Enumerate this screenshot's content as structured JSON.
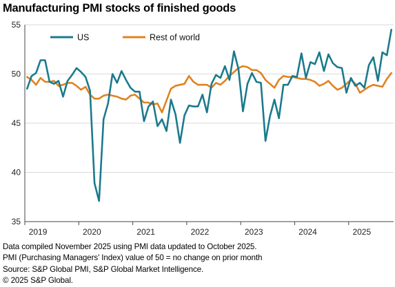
{
  "header": {
    "title": "Manufacturing PMI stocks of finished goods"
  },
  "footnotes": [
    "Data compiled November 2025 using PMI data updated to October 2025.",
    "PMI (Purchasing Managers' Index) value of 50 = no change on prior month",
    "Source: S&P Global PMI, S&P Global Market Intelligence.",
    "© 2025 S&P Global."
  ],
  "colors": {
    "US": "#1a7a8c",
    "Rest of world": "#e0821f",
    "gridline": "#d9d9d9",
    "axis": "#444444"
  },
  "chart_data": {
    "type": "line",
    "title": "Manufacturing PMI stocks of finished goods",
    "xlabel": "",
    "ylabel": "",
    "ylim": [
      35,
      55
    ],
    "yticks": [
      35,
      40,
      45,
      50,
      55
    ],
    "xticks": [
      "2019",
      "2020",
      "2021",
      "2022",
      "2023",
      "2024",
      "2025"
    ],
    "xrange": [
      "2019-01",
      "2025-10"
    ],
    "grid": "horizontal",
    "legend_position": "top-left",
    "x": [
      "2019-01",
      "2019-02",
      "2019-03",
      "2019-04",
      "2019-05",
      "2019-06",
      "2019-07",
      "2019-08",
      "2019-09",
      "2019-10",
      "2019-11",
      "2019-12",
      "2020-01",
      "2020-02",
      "2020-03",
      "2020-04",
      "2020-05",
      "2020-06",
      "2020-07",
      "2020-08",
      "2020-09",
      "2020-10",
      "2020-11",
      "2020-12",
      "2021-01",
      "2021-02",
      "2021-03",
      "2021-04",
      "2021-05",
      "2021-06",
      "2021-07",
      "2021-08",
      "2021-09",
      "2021-10",
      "2021-11",
      "2021-12",
      "2022-01",
      "2022-02",
      "2022-03",
      "2022-04",
      "2022-05",
      "2022-06",
      "2022-07",
      "2022-08",
      "2022-09",
      "2022-10",
      "2022-11",
      "2022-12",
      "2023-01",
      "2023-02",
      "2023-03",
      "2023-04",
      "2023-05",
      "2023-06",
      "2023-07",
      "2023-08",
      "2023-09",
      "2023-10",
      "2023-11",
      "2023-12",
      "2024-01",
      "2024-02",
      "2024-03",
      "2024-04",
      "2024-05",
      "2024-06",
      "2024-07",
      "2024-08",
      "2024-09",
      "2024-10",
      "2024-11",
      "2024-12",
      "2025-01",
      "2025-02",
      "2025-03",
      "2025-04",
      "2025-05",
      "2025-06",
      "2025-07",
      "2025-08",
      "2025-09",
      "2025-10"
    ],
    "series": [
      {
        "name": "US",
        "values": [
          48.5,
          49.8,
          50.1,
          51.4,
          51.4,
          49.2,
          49.0,
          49.3,
          47.7,
          49.3,
          49.9,
          50.6,
          50.2,
          49.7,
          48.3,
          38.9,
          37.1,
          45.4,
          47.0,
          50.0,
          49.1,
          50.3,
          49.4,
          48.6,
          48.2,
          48.2,
          45.2,
          46.7,
          47.2,
          44.7,
          45.4,
          44.2,
          47.4,
          45.9,
          43.0,
          45.8,
          46.8,
          46.7,
          46.7,
          47.9,
          46.1,
          49.0,
          49.9,
          49.6,
          50.8,
          49.4,
          52.3,
          50.5,
          46.2,
          49.0,
          50.1,
          49.2,
          49.1,
          43.2,
          45.7,
          47.4,
          45.5,
          48.9,
          48.9,
          49.8,
          49.7,
          52.1,
          49.6,
          51.2,
          51.0,
          52.2,
          50.3,
          52.0,
          51.1,
          50.7,
          50.6,
          48.1,
          49.6,
          48.8,
          49.1,
          48.6,
          50.9,
          51.7,
          49.3,
          52.2,
          51.9,
          54.5
        ]
      },
      {
        "name": "Rest of world",
        "values": [
          49.7,
          49.4,
          48.9,
          49.6,
          49.2,
          49.2,
          49.3,
          48.8,
          48.9,
          49.1,
          49.1,
          48.8,
          48.4,
          48.7,
          47.9,
          47.5,
          47.5,
          47.8,
          47.9,
          47.8,
          47.7,
          47.5,
          47.4,
          47.8,
          47.9,
          47.5,
          47.1,
          47.1,
          46.9,
          47.0,
          46.1,
          47.3,
          48.5,
          48.8,
          48.9,
          49.0,
          49.8,
          49.2,
          48.9,
          48.9,
          48.9,
          48.6,
          49.1,
          48.9,
          49.3,
          49.8,
          50.2,
          50.6,
          50.8,
          50.7,
          50.4,
          50.4,
          50.1,
          49.4,
          49.0,
          48.6,
          49.4,
          49.8,
          49.7,
          49.7,
          49.6,
          49.5,
          49.5,
          49.4,
          49.2,
          48.8,
          49.0,
          49.3,
          48.8,
          48.4,
          48.6,
          49.0,
          49.4,
          49.0,
          48.1,
          48.4,
          48.7,
          48.9,
          48.8,
          48.7,
          49.5,
          50.1
        ]
      }
    ]
  }
}
